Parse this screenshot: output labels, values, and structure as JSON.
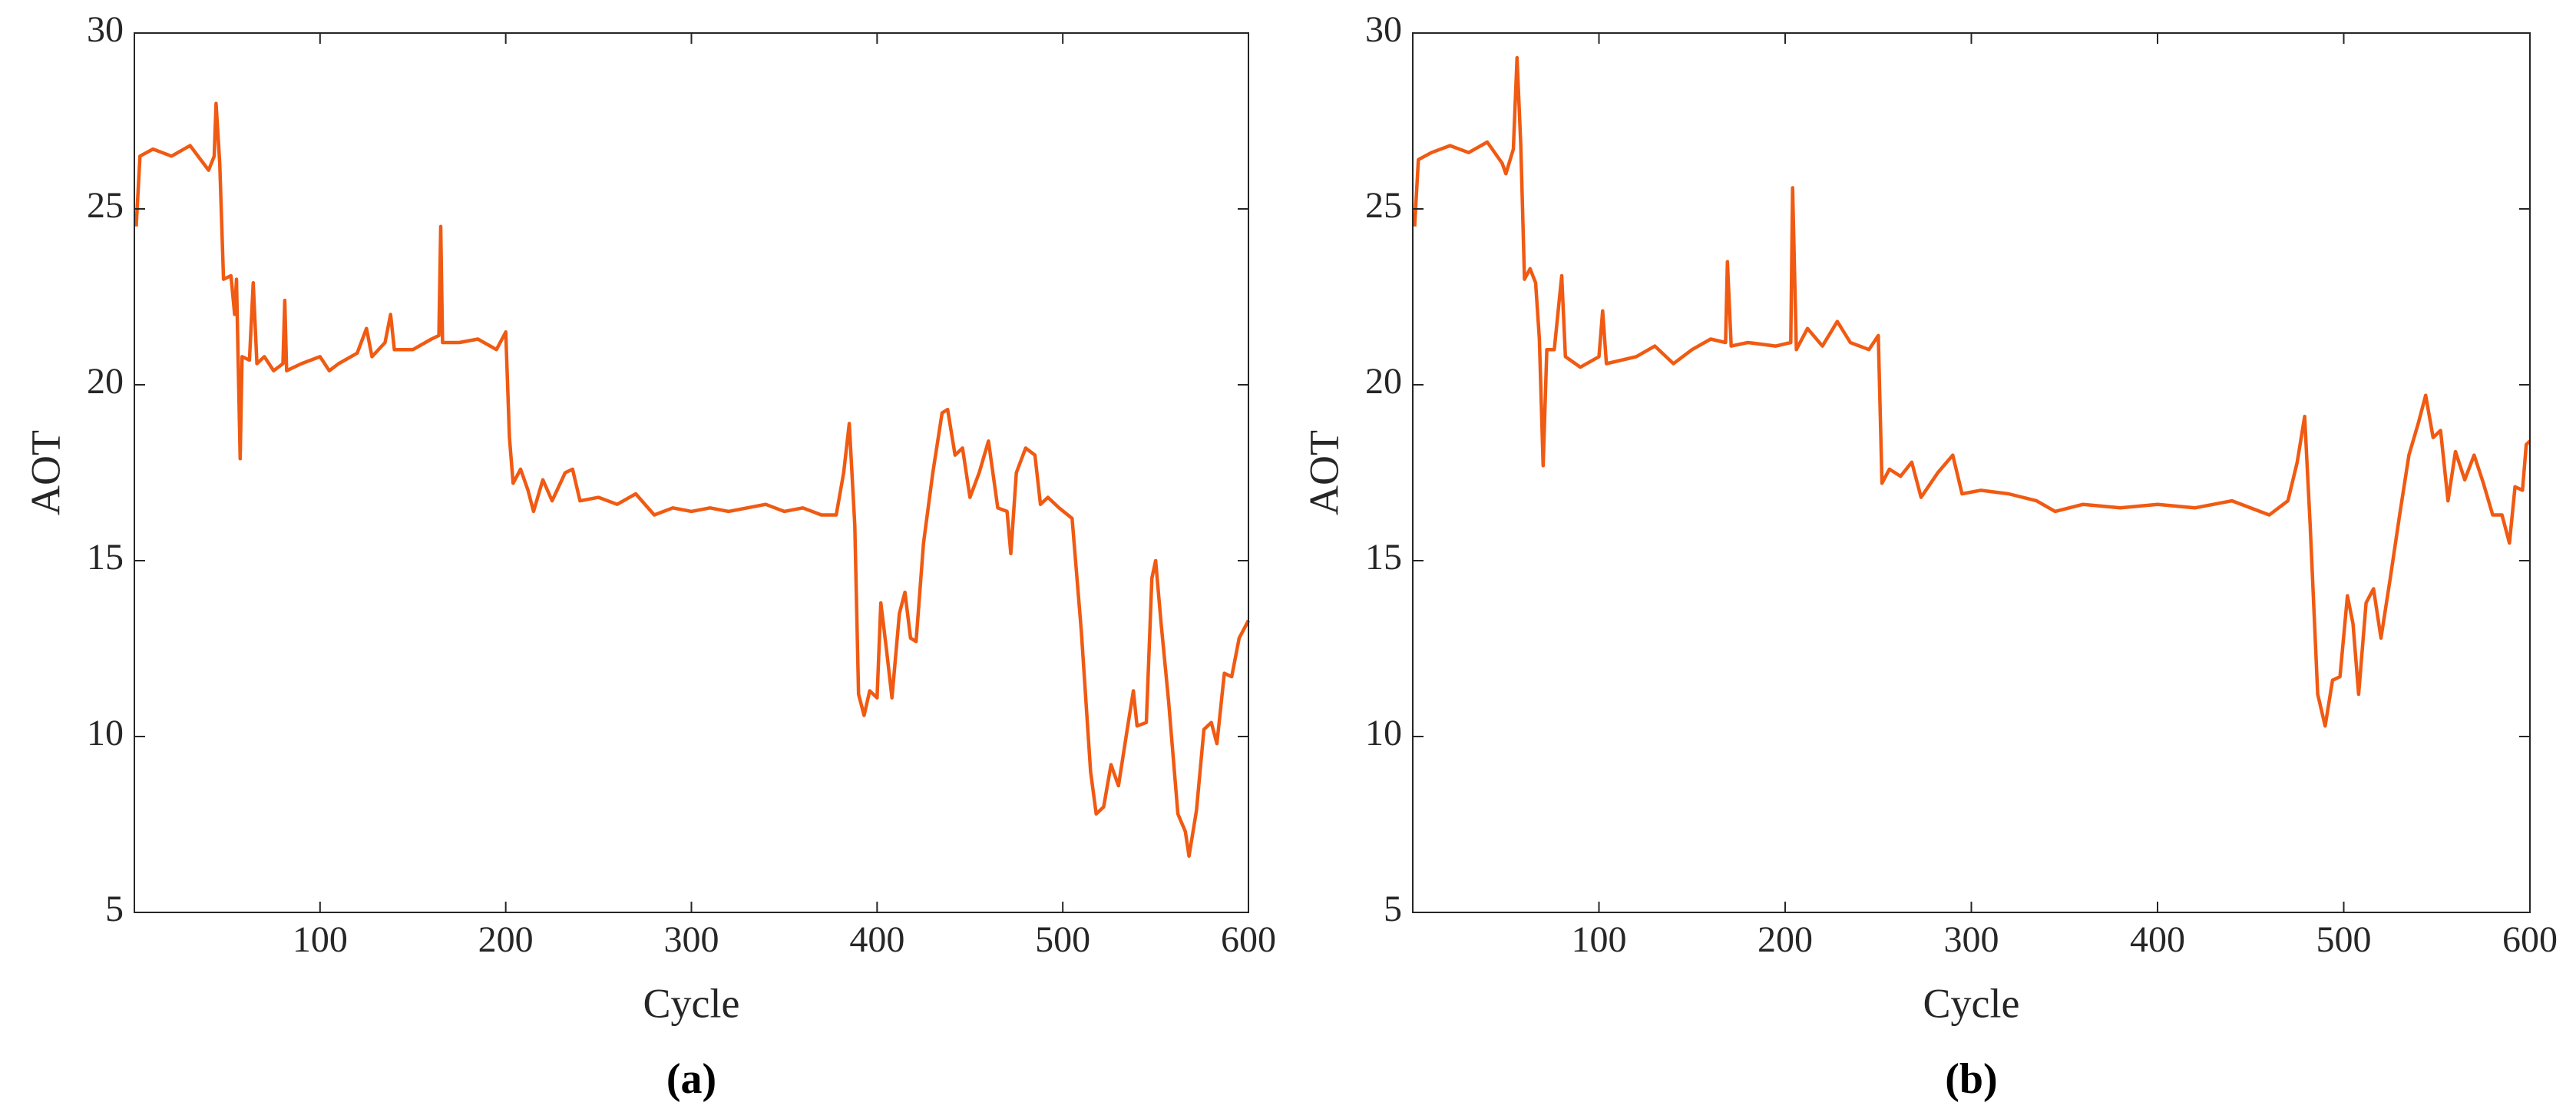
{
  "chart_data": [
    {
      "type": "line",
      "caption": "(a)",
      "xlabel": "Cycle",
      "ylabel": "AOT",
      "xlim": [
        0,
        600
      ],
      "ylim": [
        5,
        30
      ],
      "xticks": [
        100,
        200,
        300,
        400,
        500,
        600
      ],
      "yticks": [
        5,
        10,
        15,
        20,
        25,
        30
      ],
      "series": [
        {
          "color": "#f05a12",
          "x": [
            1,
            3,
            10,
            20,
            30,
            40,
            43,
            44,
            46,
            48,
            52,
            54,
            55,
            57,
            58,
            62,
            64,
            66,
            70,
            75,
            80,
            81,
            82,
            90,
            100,
            105,
            110,
            120,
            125,
            128,
            135,
            138,
            140,
            150,
            160,
            164,
            165,
            166,
            175,
            185,
            195,
            200,
            202,
            204,
            208,
            212,
            215,
            220,
            225,
            232,
            236,
            240,
            250,
            260,
            270,
            280,
            290,
            300,
            310,
            320,
            330,
            340,
            350,
            360,
            370,
            378,
            382,
            385,
            388,
            390,
            393,
            396,
            400,
            402,
            405,
            408,
            412,
            415,
            418,
            421,
            425,
            430,
            435,
            438,
            442,
            446,
            450,
            455,
            460,
            465,
            470,
            472,
            475,
            480,
            485,
            488,
            492,
            498,
            505,
            510,
            515,
            518,
            522,
            526,
            530,
            535,
            538,
            540,
            545,
            548,
            550,
            553,
            557,
            562,
            566,
            568,
            572,
            576,
            580,
            583,
            587,
            591,
            595,
            600
          ],
          "values": [
            24.5,
            26.5,
            26.7,
            26.5,
            26.8,
            26.1,
            26.5,
            28.0,
            26.3,
            23.0,
            23.1,
            22.0,
            23.0,
            17.9,
            20.8,
            20.7,
            22.9,
            20.6,
            20.8,
            20.4,
            20.6,
            22.4,
            20.4,
            20.6,
            20.8,
            20.4,
            20.6,
            20.9,
            21.6,
            20.8,
            21.2,
            22.0,
            21.0,
            21.0,
            21.3,
            21.4,
            24.5,
            21.2,
            21.2,
            21.3,
            21.0,
            21.5,
            18.5,
            17.2,
            17.6,
            17.0,
            16.4,
            17.3,
            16.7,
            17.5,
            17.6,
            16.7,
            16.8,
            16.6,
            16.9,
            16.3,
            16.5,
            16.4,
            16.5,
            16.4,
            16.5,
            16.6,
            16.4,
            16.5,
            16.3,
            16.3,
            17.5,
            18.9,
            16.0,
            11.2,
            10.6,
            11.3,
            11.1,
            13.8,
            12.5,
            11.1,
            13.5,
            14.1,
            12.8,
            12.7,
            15.5,
            17.5,
            19.2,
            19.3,
            18.0,
            18.2,
            16.8,
            17.5,
            18.4,
            16.5,
            16.4,
            15.2,
            17.5,
            18.2,
            18.0,
            16.6,
            16.8,
            16.5,
            16.2,
            13.0,
            9.0,
            7.8,
            8.0,
            9.2,
            8.6,
            10.3,
            11.3,
            10.3,
            10.4,
            14.5,
            15.0,
            13.2,
            11.0,
            7.8,
            7.3,
            6.6,
            7.9,
            10.2,
            10.4,
            9.8,
            11.8,
            11.7,
            12.8,
            13.3
          ]
        }
      ]
    },
    {
      "type": "line",
      "caption": "(b)",
      "xlabel": "Cycle",
      "ylabel": "AOT",
      "xlim": [
        0,
        600
      ],
      "ylim": [
        5,
        30
      ],
      "xticks": [
        100,
        200,
        300,
        400,
        500,
        600
      ],
      "yticks": [
        5,
        10,
        15,
        20,
        25,
        30
      ],
      "series": [
        {
          "color": "#f05a12",
          "x": [
            1,
            3,
            10,
            20,
            30,
            40,
            48,
            50,
            54,
            56,
            58,
            60,
            63,
            66,
            68,
            70,
            72,
            76,
            80,
            82,
            90,
            100,
            102,
            104,
            120,
            130,
            140,
            150,
            160,
            168,
            169,
            171,
            180,
            195,
            203,
            204,
            206,
            212,
            220,
            228,
            235,
            245,
            250,
            252,
            256,
            262,
            268,
            273,
            282,
            290,
            295,
            305,
            320,
            335,
            345,
            360,
            380,
            400,
            420,
            440,
            460,
            470,
            475,
            479,
            482,
            486,
            490,
            494,
            498,
            502,
            505,
            508,
            512,
            516,
            520,
            525,
            530,
            535,
            540,
            544,
            548,
            552,
            556,
            560,
            565,
            570,
            575,
            580,
            585,
            589,
            592,
            596,
            598,
            600
          ],
          "values": [
            24.5,
            26.4,
            26.6,
            26.8,
            26.6,
            26.9,
            26.3,
            26.0,
            26.7,
            29.3,
            26.8,
            23.0,
            23.3,
            22.9,
            21.3,
            17.7,
            21.0,
            21.0,
            23.1,
            20.8,
            20.5,
            20.8,
            22.1,
            20.6,
            20.8,
            21.1,
            20.6,
            21.0,
            21.3,
            21.2,
            23.5,
            21.1,
            21.2,
            21.1,
            21.2,
            25.6,
            21.0,
            21.6,
            21.1,
            21.8,
            21.2,
            21.0,
            21.4,
            17.2,
            17.6,
            17.4,
            17.8,
            16.8,
            17.5,
            18.0,
            16.9,
            17.0,
            16.9,
            16.7,
            16.4,
            16.6,
            16.5,
            16.6,
            16.5,
            16.7,
            16.3,
            16.7,
            17.8,
            19.1,
            16.0,
            11.2,
            10.3,
            11.6,
            11.7,
            14.0,
            13.2,
            11.2,
            13.8,
            14.2,
            12.8,
            14.5,
            16.3,
            18.0,
            18.9,
            19.7,
            18.5,
            18.7,
            16.7,
            18.1,
            17.3,
            18.0,
            17.2,
            16.3,
            16.3,
            15.5,
            17.1,
            17.0,
            18.3,
            18.4
          ]
        }
      ]
    }
  ]
}
